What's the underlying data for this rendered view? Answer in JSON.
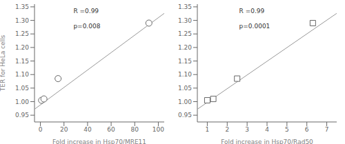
{
  "chart_data": [
    {
      "type": "scatter",
      "xlabel": "Fold increase in Hsp70/MRE11",
      "ylabel": "TER for HeLa cells",
      "annotations": [
        "R =0.99",
        "p=0.008"
      ],
      "xlim": [
        -5,
        105
      ],
      "xticks": [
        0,
        20,
        40,
        60,
        80,
        100
      ],
      "ylim": [
        0.925,
        1.36
      ],
      "yticks": [
        0.95,
        {
          "value": 1.0,
          "label": "1.00"
        },
        1.05,
        {
          "value": 1.1,
          "label": "1.10"
        },
        1.15,
        {
          "value": 1.2,
          "label": "1.20"
        },
        1.25,
        {
          "value": 1.3,
          "label": "1.30"
        },
        1.35
      ],
      "series": [
        {
          "type": "line",
          "x": [
            -5,
            105
          ],
          "values": [
            0.972,
            1.326
          ],
          "color": "#999999"
        },
        {
          "type": "scatter",
          "x": [
            1,
            3,
            15,
            92
          ],
          "values": [
            1.005,
            1.01,
            1.085,
            1.29
          ],
          "marker": "circle",
          "color": "#666666"
        }
      ]
    },
    {
      "type": "scatter",
      "xlabel": "Fold increase in Hsp70/Rad50",
      "annotations": [
        "R =0.99",
        "p=0.0001"
      ],
      "xlim": [
        0.5,
        7.5
      ],
      "xticks": [
        1,
        2,
        3,
        4,
        5,
        6,
        7
      ],
      "ylim": [
        0.925,
        1.36
      ],
      "yticks": [
        0.95,
        {
          "value": 1.0,
          "label": "1.00"
        },
        1.05,
        {
          "value": 1.1,
          "label": "1.10"
        },
        1.15,
        {
          "value": 1.2,
          "label": "1.20"
        },
        1.25,
        {
          "value": 1.3,
          "label": "1.30"
        },
        1.35
      ],
      "series": [
        {
          "type": "line",
          "x": [
            0.5,
            7.5
          ],
          "values": [
            0.972,
            1.326
          ],
          "color": "#999999"
        },
        {
          "type": "scatter",
          "x": [
            1.0,
            1.3,
            2.5,
            6.3
          ],
          "values": [
            1.005,
            1.01,
            1.085,
            1.29
          ],
          "marker": "square",
          "color": "#666666"
        }
      ]
    }
  ]
}
